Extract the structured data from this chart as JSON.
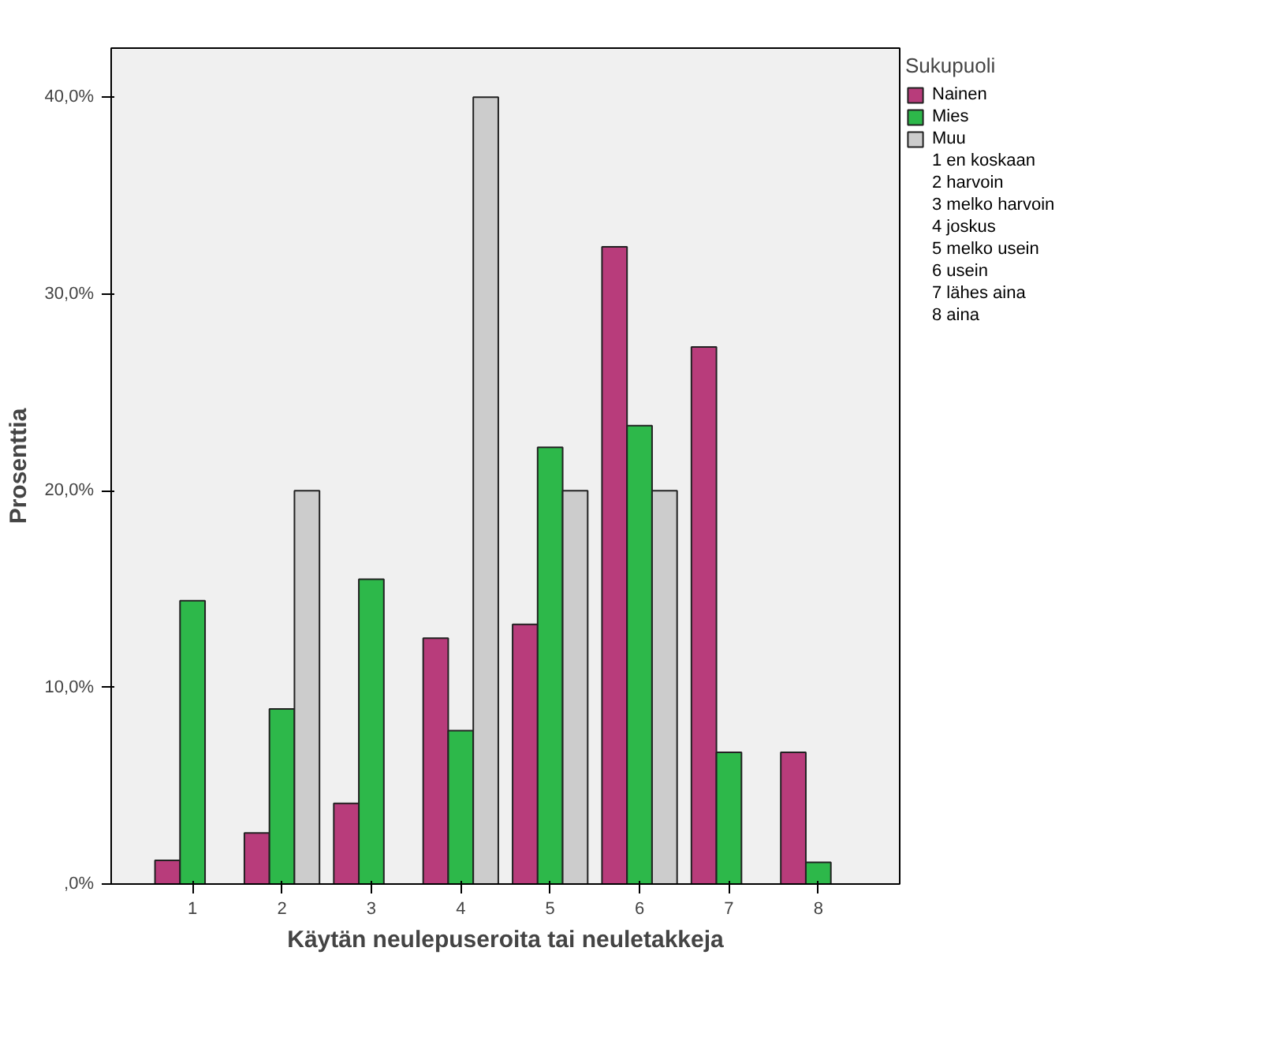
{
  "chart_data": {
    "type": "bar",
    "xlabel": "Käytän neulepuseroita tai neuletakkeja",
    "ylabel": "Prosenttia",
    "legend_title": "Sukupuoli",
    "categories": [
      "1",
      "2",
      "3",
      "4",
      "5",
      "6",
      "7",
      "8"
    ],
    "series": [
      {
        "name": "Nainen",
        "color": "#b83c7b",
        "values": [
          1.2,
          2.6,
          4.1,
          12.5,
          13.2,
          32.4,
          27.3,
          6.7
        ]
      },
      {
        "name": "Mies",
        "color": "#2db84a",
        "values": [
          14.4,
          8.9,
          15.5,
          7.8,
          22.2,
          23.3,
          6.7,
          1.1
        ]
      },
      {
        "name": "Muu",
        "color": "#cccccc",
        "values": [
          null,
          20.0,
          null,
          40.0,
          20.0,
          20.0,
          null,
          null
        ]
      }
    ],
    "ylim": [
      0,
      42.5
    ],
    "yticks": [
      {
        "value": 0,
        "label": ",0%"
      },
      {
        "value": 10,
        "label": "10,0%"
      },
      {
        "value": 20,
        "label": "20,0%"
      },
      {
        "value": 30,
        "label": "30,0%"
      },
      {
        "value": 40,
        "label": "40,0%"
      }
    ],
    "grid": false,
    "legend": "right",
    "annotations": [
      "1 en koskaan",
      "2 harvoin",
      "3 melko harvoin",
      "4 joskus",
      "5 melko usein",
      "6 usein",
      "7 lähes aina",
      "8 aina"
    ]
  }
}
